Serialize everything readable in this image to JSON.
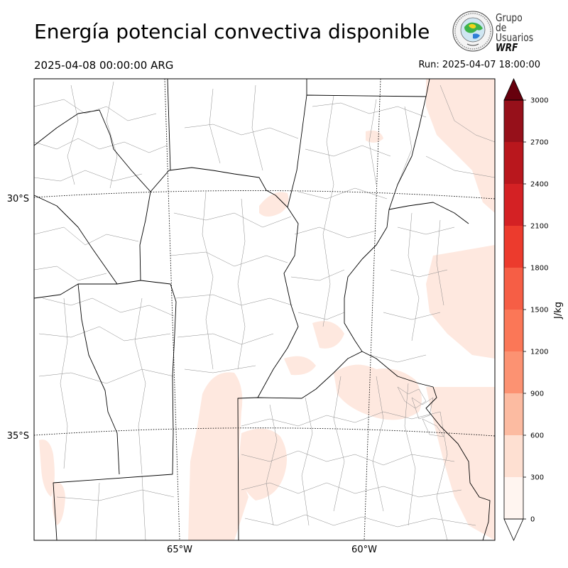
{
  "title": "Energía potencial convectiva disponible",
  "valid_time": "2025-04-08 00:00:00 ARG",
  "run_time": "Run: 2025-04-07 18:00:00",
  "logo": {
    "line1": "Grupo de",
    "line2": "Usuarios",
    "line3": "WRF"
  },
  "map": {
    "lat_labels": [
      "30°S",
      "35°S"
    ],
    "lon_labels": [
      "65°W",
      "60°W"
    ],
    "shading_color": "#fee8df",
    "border_color": "#000000",
    "department_color": "#8a8a8a"
  },
  "colorbar": {
    "unit": "J/kg",
    "levels": [
      0,
      300,
      600,
      900,
      1200,
      1500,
      1800,
      2100,
      2400,
      2700,
      3000
    ],
    "tick_labels": [
      "0",
      "300",
      "600",
      "900",
      "1200",
      "1500",
      "1800",
      "2100",
      "2400",
      "2700",
      "3000"
    ],
    "colors": [
      "#fff5f0",
      "#fee0d2",
      "#fcbba1",
      "#fc9272",
      "#fb7757",
      "#f65e45",
      "#ec3b2d",
      "#d42124",
      "#b9171d",
      "#96101a"
    ],
    "under_color": "#ffffff",
    "over_color": "#67000d",
    "extend": "both"
  }
}
